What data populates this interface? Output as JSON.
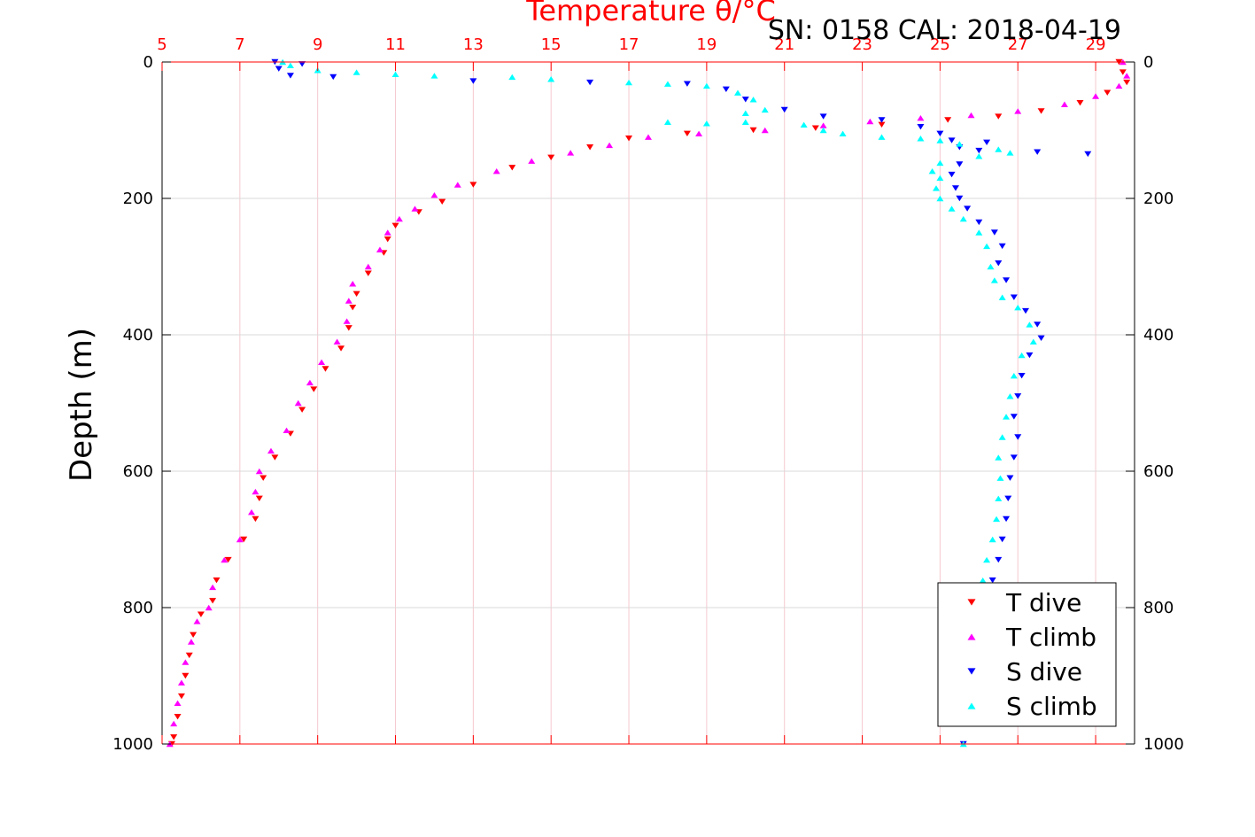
{
  "chart_data": {
    "type": "scatter",
    "title": "Temperature θ/°C",
    "subtitle": "SN: 0158  CAL: 2018-04-19",
    "ylabel": "Depth (m)",
    "xlim": [
      5,
      30
    ],
    "ylim": [
      0,
      1000
    ],
    "y_reversed": true,
    "x_ticks": [
      "5",
      "7",
      "9",
      "11",
      "13",
      "15",
      "17",
      "19",
      "21",
      "23",
      "25",
      "27",
      "29"
    ],
    "x_tick_values": [
      5,
      7,
      9,
      11,
      13,
      15,
      17,
      19,
      21,
      23,
      25,
      27,
      29
    ],
    "y_ticks": [
      "0",
      "200",
      "400",
      "600",
      "800",
      "1000"
    ],
    "y_tick_values": [
      0,
      200,
      400,
      600,
      800,
      1000
    ],
    "grid": true,
    "legend_position": "bottom-right",
    "colors": {
      "t_dive": "#ff0000",
      "t_climb": "#ff00ff",
      "s_dive": "#0000ff",
      "s_climb": "#00ffff",
      "top_axis": "#ff0000",
      "grid": "#d9d9d9"
    },
    "series": [
      {
        "name": "T dive",
        "marker": "triangle-down",
        "points": [
          [
            29.6,
            0
          ],
          [
            29.7,
            15
          ],
          [
            29.8,
            30
          ],
          [
            29.3,
            45
          ],
          [
            28.6,
            60
          ],
          [
            27.6,
            72
          ],
          [
            26.5,
            80
          ],
          [
            25.2,
            85
          ],
          [
            23.5,
            92
          ],
          [
            21.8,
            97
          ],
          [
            20.2,
            100
          ],
          [
            18.5,
            105
          ],
          [
            17.0,
            112
          ],
          [
            16.0,
            125
          ],
          [
            15.0,
            140
          ],
          [
            14.0,
            155
          ],
          [
            13.0,
            180
          ],
          [
            12.2,
            205
          ],
          [
            11.6,
            220
          ],
          [
            11.0,
            240
          ],
          [
            10.8,
            260
          ],
          [
            10.7,
            280
          ],
          [
            10.3,
            310
          ],
          [
            10.0,
            340
          ],
          [
            9.9,
            360
          ],
          [
            9.8,
            390
          ],
          [
            9.6,
            420
          ],
          [
            9.2,
            450
          ],
          [
            8.9,
            480
          ],
          [
            8.6,
            510
          ],
          [
            8.3,
            545
          ],
          [
            7.9,
            580
          ],
          [
            7.6,
            610
          ],
          [
            7.5,
            640
          ],
          [
            7.4,
            670
          ],
          [
            7.1,
            700
          ],
          [
            6.7,
            730
          ],
          [
            6.4,
            760
          ],
          [
            6.3,
            790
          ],
          [
            6.0,
            810
          ],
          [
            5.8,
            840
          ],
          [
            5.7,
            870
          ],
          [
            5.6,
            900
          ],
          [
            5.5,
            930
          ],
          [
            5.4,
            960
          ],
          [
            5.3,
            990
          ],
          [
            5.25,
            1000
          ]
        ]
      },
      {
        "name": "T climb",
        "marker": "triangle-up",
        "points": [
          [
            29.7,
            0
          ],
          [
            29.8,
            20
          ],
          [
            29.6,
            35
          ],
          [
            29.0,
            50
          ],
          [
            28.2,
            62
          ],
          [
            27.0,
            72
          ],
          [
            25.8,
            78
          ],
          [
            24.5,
            82
          ],
          [
            23.2,
            87
          ],
          [
            22.0,
            93
          ],
          [
            20.5,
            100
          ],
          [
            18.8,
            105
          ],
          [
            17.5,
            110
          ],
          [
            16.5,
            122
          ],
          [
            15.5,
            133
          ],
          [
            14.5,
            145
          ],
          [
            13.6,
            160
          ],
          [
            12.6,
            180
          ],
          [
            12.0,
            195
          ],
          [
            11.5,
            215
          ],
          [
            11.1,
            230
          ],
          [
            10.8,
            250
          ],
          [
            10.6,
            275
          ],
          [
            10.3,
            300
          ],
          [
            9.9,
            325
          ],
          [
            9.8,
            350
          ],
          [
            9.75,
            380
          ],
          [
            9.5,
            410
          ],
          [
            9.1,
            440
          ],
          [
            8.8,
            470
          ],
          [
            8.5,
            500
          ],
          [
            8.2,
            540
          ],
          [
            7.8,
            570
          ],
          [
            7.5,
            600
          ],
          [
            7.4,
            630
          ],
          [
            7.3,
            660
          ],
          [
            7.0,
            700
          ],
          [
            6.6,
            730
          ],
          [
            6.3,
            770
          ],
          [
            6.2,
            800
          ],
          [
            5.9,
            820
          ],
          [
            5.75,
            850
          ],
          [
            5.6,
            880
          ],
          [
            5.5,
            910
          ],
          [
            5.4,
            940
          ],
          [
            5.3,
            970
          ],
          [
            5.2,
            1000
          ]
        ]
      },
      {
        "name": "S dive",
        "marker": "triangle-down",
        "points": [
          [
            7.9,
            0
          ],
          [
            8.0,
            10
          ],
          [
            8.3,
            20
          ],
          [
            8.6,
            3
          ],
          [
            9.4,
            22
          ],
          [
            13.0,
            28
          ],
          [
            16.0,
            30
          ],
          [
            18.5,
            32
          ],
          [
            19.5,
            40
          ],
          [
            20.0,
            55
          ],
          [
            21.0,
            70
          ],
          [
            22.0,
            80
          ],
          [
            23.5,
            85
          ],
          [
            24.5,
            95
          ],
          [
            25.0,
            105
          ],
          [
            25.3,
            115
          ],
          [
            26.2,
            118
          ],
          [
            25.5,
            125
          ],
          [
            26.0,
            130
          ],
          [
            27.5,
            132
          ],
          [
            28.8,
            135
          ],
          [
            25.5,
            150
          ],
          [
            25.3,
            165
          ],
          [
            25.4,
            185
          ],
          [
            25.5,
            200
          ],
          [
            25.7,
            215
          ],
          [
            26.0,
            235
          ],
          [
            26.4,
            250
          ],
          [
            26.6,
            270
          ],
          [
            26.5,
            295
          ],
          [
            26.7,
            320
          ],
          [
            26.9,
            345
          ],
          [
            27.2,
            365
          ],
          [
            27.5,
            385
          ],
          [
            27.6,
            405
          ],
          [
            27.3,
            430
          ],
          [
            27.1,
            460
          ],
          [
            27.0,
            490
          ],
          [
            26.9,
            520
          ],
          [
            27.0,
            550
          ],
          [
            26.9,
            580
          ],
          [
            26.8,
            610
          ],
          [
            26.75,
            640
          ],
          [
            26.7,
            670
          ],
          [
            26.6,
            700
          ],
          [
            26.5,
            730
          ],
          [
            26.35,
            760
          ],
          [
            26.2,
            790
          ],
          [
            26.0,
            820
          ],
          [
            25.9,
            850
          ],
          [
            25.8,
            880
          ],
          [
            25.7,
            910
          ],
          [
            25.65,
            940
          ],
          [
            25.6,
            970
          ],
          [
            25.6,
            1000
          ]
        ]
      },
      {
        "name": "S climb",
        "marker": "triangle-up",
        "points": [
          [
            8.1,
            0
          ],
          [
            8.3,
            5
          ],
          [
            9.0,
            12
          ],
          [
            10.0,
            15
          ],
          [
            11.0,
            18
          ],
          [
            12.0,
            20
          ],
          [
            14.0,
            22
          ],
          [
            15.0,
            25
          ],
          [
            17.0,
            30
          ],
          [
            18.0,
            32
          ],
          [
            19.0,
            35
          ],
          [
            19.8,
            45
          ],
          [
            20.2,
            55
          ],
          [
            20.5,
            70
          ],
          [
            20.0,
            75
          ],
          [
            18.0,
            88
          ],
          [
            19.0,
            90
          ],
          [
            20.0,
            88
          ],
          [
            21.5,
            92
          ],
          [
            22.0,
            100
          ],
          [
            22.5,
            105
          ],
          [
            23.5,
            110
          ],
          [
            24.5,
            112
          ],
          [
            25.0,
            115
          ],
          [
            25.5,
            120
          ],
          [
            26.5,
            128
          ],
          [
            26.8,
            133
          ],
          [
            26.0,
            138
          ],
          [
            25.0,
            148
          ],
          [
            24.8,
            160
          ],
          [
            25.0,
            170
          ],
          [
            24.9,
            185
          ],
          [
            25.0,
            200
          ],
          [
            25.3,
            215
          ],
          [
            25.6,
            230
          ],
          [
            26.0,
            250
          ],
          [
            26.2,
            270
          ],
          [
            26.3,
            300
          ],
          [
            26.4,
            320
          ],
          [
            26.6,
            345
          ],
          [
            27.0,
            360
          ],
          [
            27.3,
            385
          ],
          [
            27.4,
            410
          ],
          [
            27.1,
            430
          ],
          [
            26.9,
            460
          ],
          [
            26.8,
            490
          ],
          [
            26.7,
            520
          ],
          [
            26.6,
            550
          ],
          [
            26.5,
            580
          ],
          [
            26.55,
            610
          ],
          [
            26.5,
            640
          ],
          [
            26.45,
            670
          ],
          [
            26.35,
            700
          ],
          [
            26.2,
            730
          ],
          [
            26.1,
            760
          ],
          [
            25.95,
            790
          ],
          [
            25.85,
            820
          ],
          [
            25.75,
            850
          ],
          [
            25.7,
            880
          ],
          [
            25.65,
            910
          ],
          [
            25.6,
            940
          ],
          [
            25.55,
            970
          ],
          [
            25.6,
            1000
          ]
        ]
      }
    ]
  }
}
